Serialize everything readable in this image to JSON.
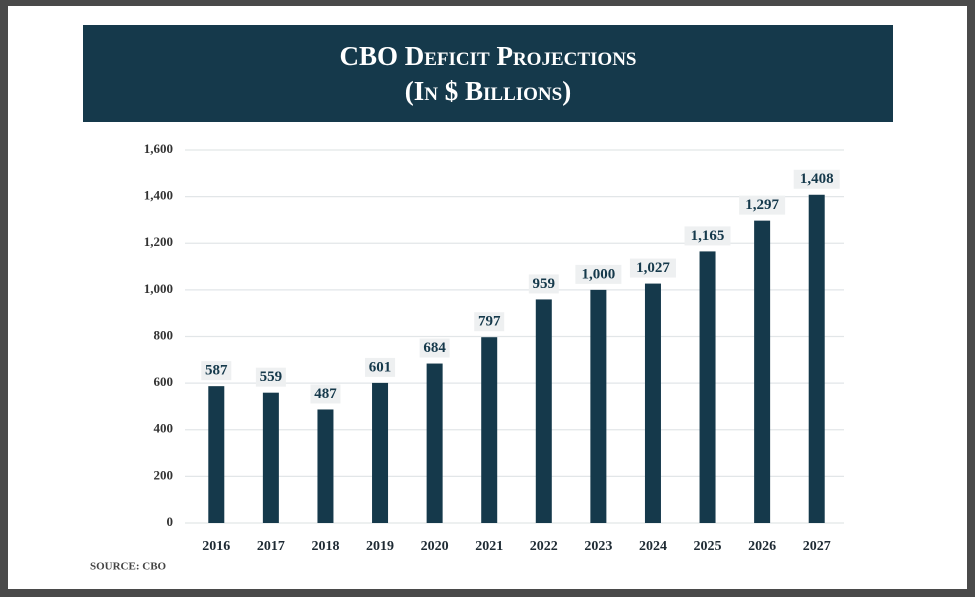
{
  "chart_data": {
    "type": "bar",
    "title": "CBO Deficit Projections",
    "subtitle": "(In $ Billions)",
    "source": "SOURCE: CBO",
    "categories": [
      "2016",
      "2017",
      "2018",
      "2019",
      "2020",
      "2021",
      "2022",
      "2023",
      "2024",
      "2025",
      "2026",
      "2027"
    ],
    "values": [
      587,
      559,
      487,
      601,
      684,
      797,
      959,
      1000,
      1027,
      1165,
      1297,
      1408
    ],
    "value_labels": [
      "587",
      "559",
      "487",
      "601",
      "684",
      "797",
      "959",
      "1,000",
      "1,027",
      "1,165",
      "1,297",
      "1,408"
    ],
    "color": "#15394b",
    "ylim": [
      0,
      1600
    ],
    "yticks": [
      0,
      200,
      400,
      600,
      800,
      {
        "value": 1000,
        "label": "1,000"
      },
      {
        "value": 1200,
        "label": "1,200"
      },
      {
        "value": 1400,
        "label": "1,400"
      },
      {
        "value": 1600,
        "label": "1,600"
      }
    ],
    "grid": true
  }
}
